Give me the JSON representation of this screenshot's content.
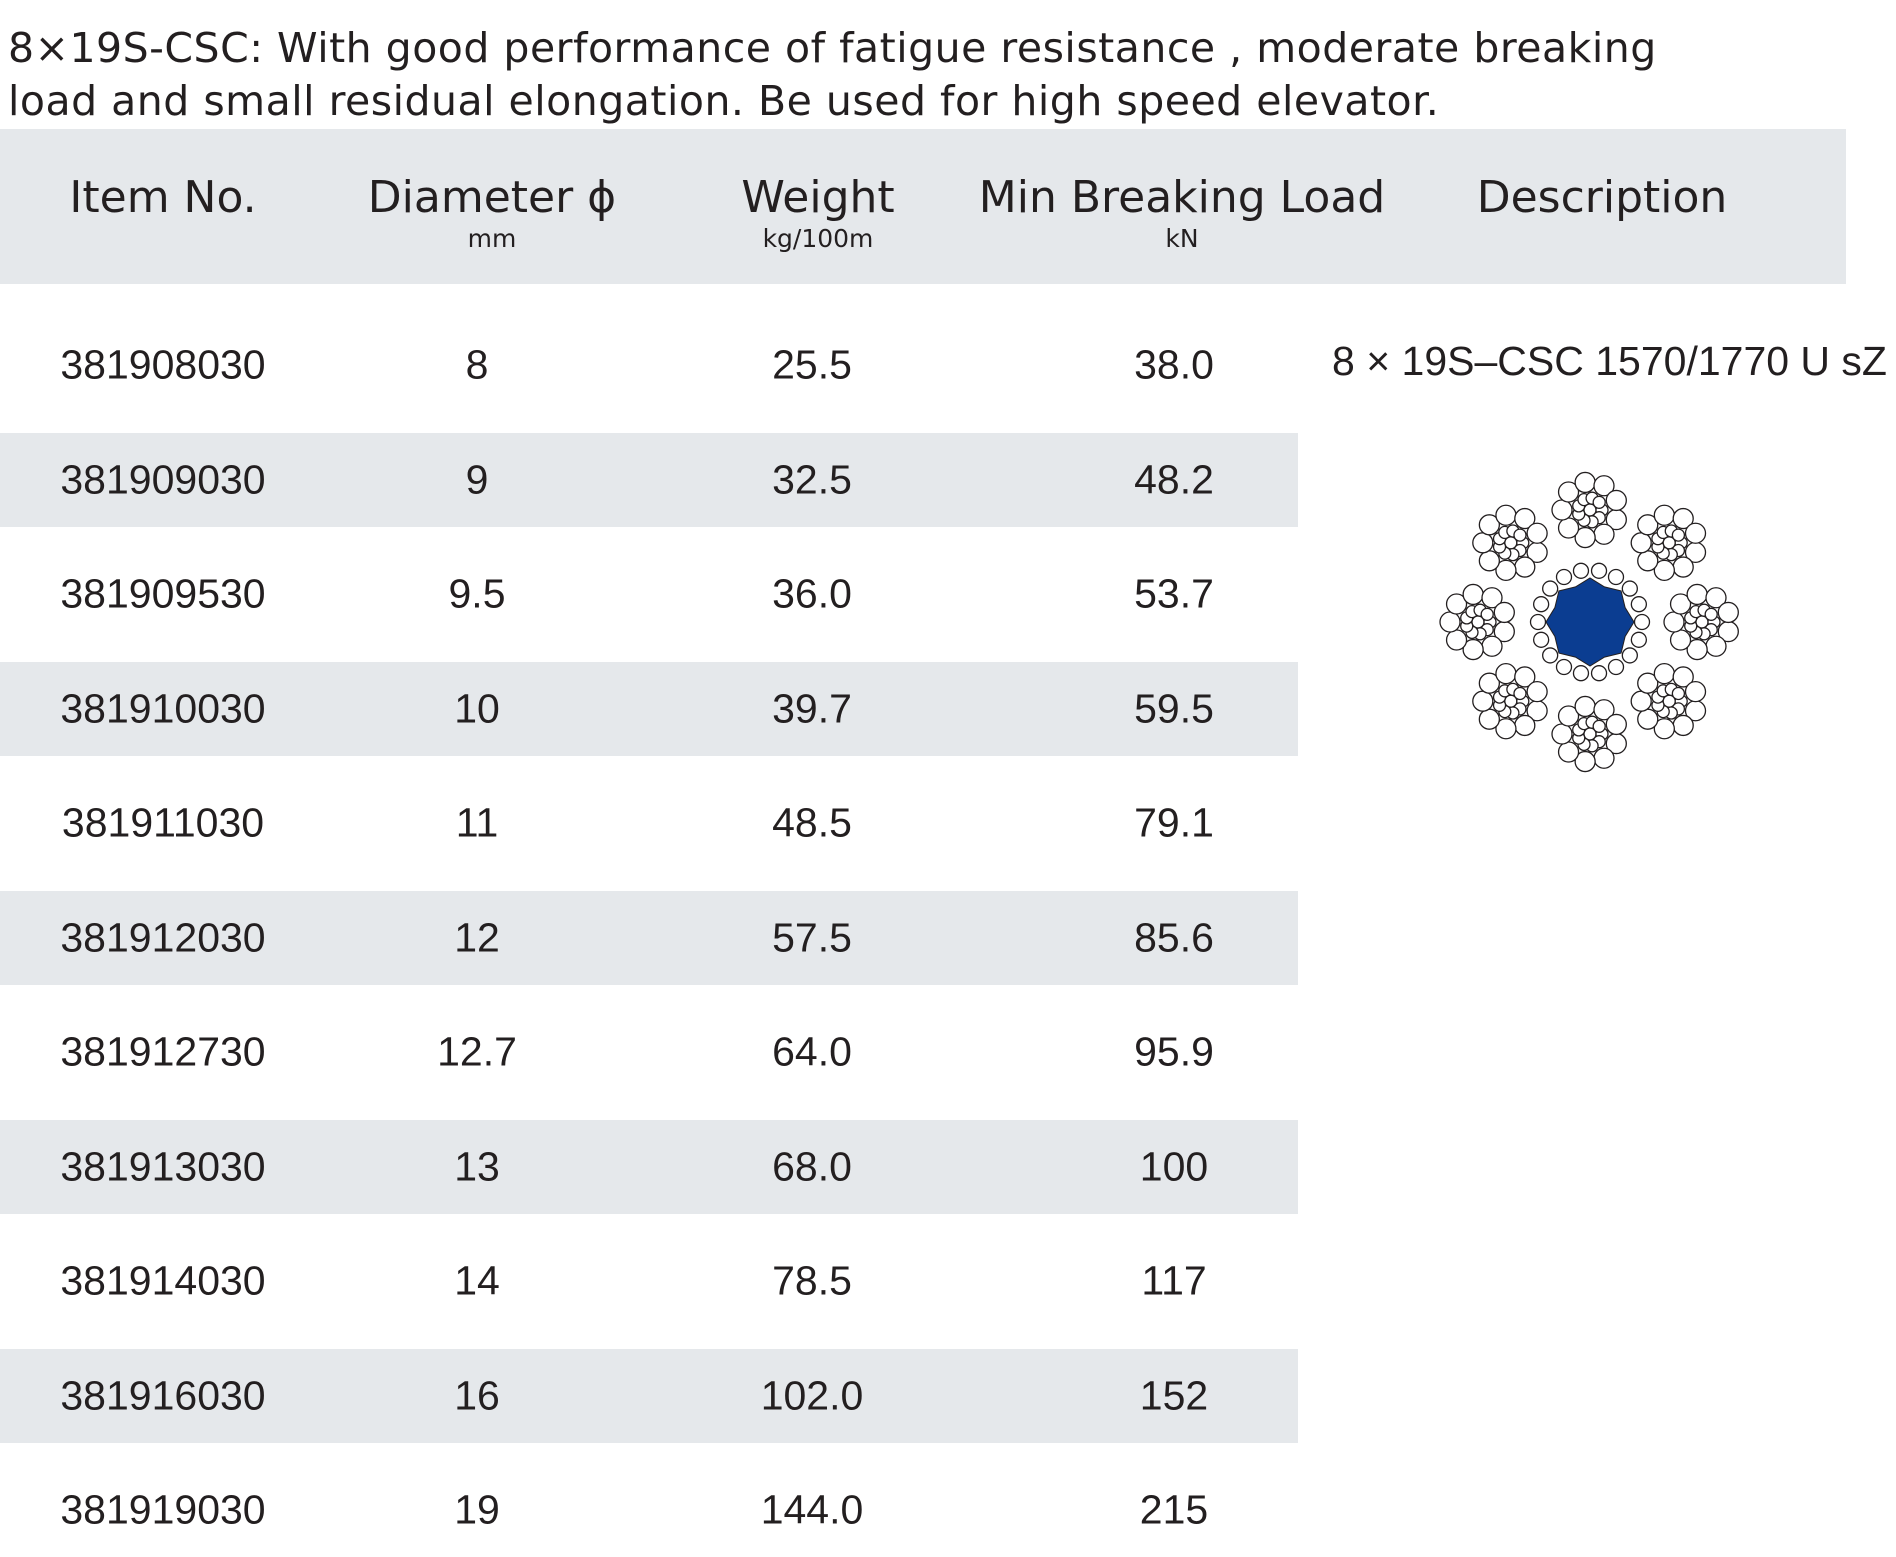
{
  "intro": {
    "line1": "8×19S-CSC: With good performance of fatigue resistance , moderate breaking",
    "line2": "load and small residual elongation. Be used for high speed elevator."
  },
  "table": {
    "headers": [
      {
        "label": "Item No.",
        "unit": ""
      },
      {
        "label": "Diameter ϕ",
        "unit": "mm"
      },
      {
        "label": "Weight",
        "unit": "kg/100m"
      },
      {
        "label": "Min Breaking Load",
        "unit": "kN"
      },
      {
        "label": "Description",
        "unit": ""
      }
    ],
    "rows": [
      {
        "item": "381908030",
        "diameter": "8",
        "weight": "25.5",
        "mbl": "38.0"
      },
      {
        "item": "381909030",
        "diameter": "9",
        "weight": "32.5",
        "mbl": "48.2"
      },
      {
        "item": "381909530",
        "diameter": "9.5",
        "weight": "36.0",
        "mbl": "53.7"
      },
      {
        "item": "381910030",
        "diameter": "10",
        "weight": "39.7",
        "mbl": "59.5"
      },
      {
        "item": "381911030",
        "diameter": "11",
        "weight": "48.5",
        "mbl": "79.1"
      },
      {
        "item": "381912030",
        "diameter": "12",
        "weight": "57.5",
        "mbl": "85.6"
      },
      {
        "item": "381912730",
        "diameter": "12.7",
        "weight": "64.0",
        "mbl": "95.9"
      },
      {
        "item": "381913030",
        "diameter": "13",
        "weight": "68.0",
        "mbl": "100"
      },
      {
        "item": "381914030",
        "diameter": "14",
        "weight": "78.5",
        "mbl": "117"
      },
      {
        "item": "381916030",
        "diameter": "16",
        "weight": "102.0",
        "mbl": "152"
      },
      {
        "item": "381919030",
        "diameter": "19",
        "weight": "144.0",
        "mbl": "215"
      }
    ],
    "description": "8 × 19S–CSC 1570/1770 U sZ"
  },
  "colors": {
    "header_bg": "#e5e8eb",
    "stripe_bg": "#e5e8eb",
    "core_fill": "#0b3d91",
    "text": "#231f20"
  },
  "icons": {
    "rope_cross_section": "wire-rope-cross-section-icon"
  }
}
